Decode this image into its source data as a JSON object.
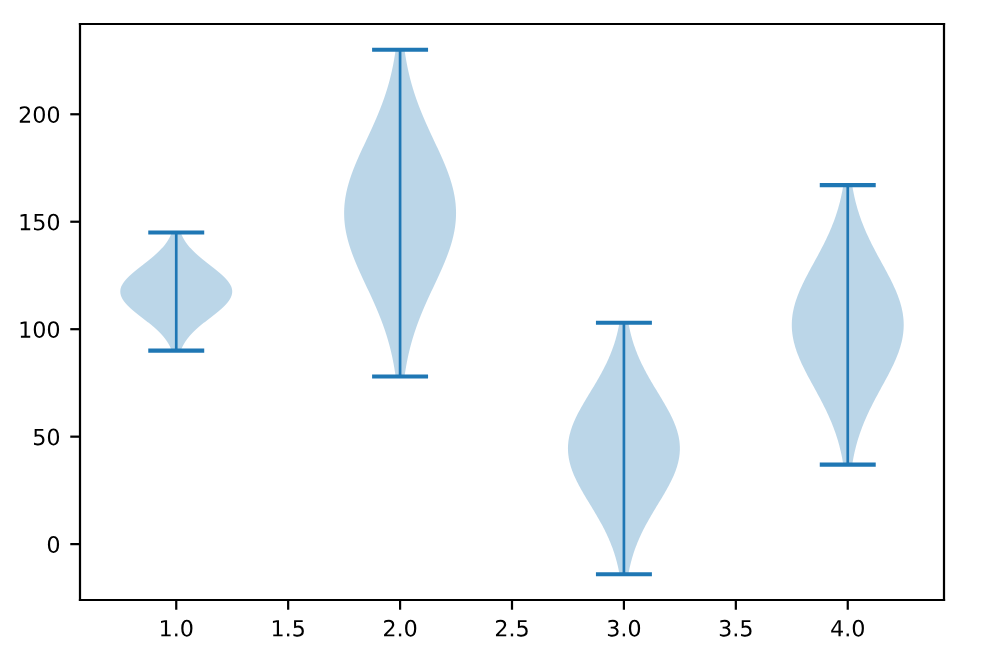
{
  "chart_data": {
    "type": "bar",
    "x": [
      1,
      2,
      3,
      4
    ],
    "series": [
      {
        "color": "#1f77b4",
        "base": [
          90,
          78,
          -14,
          37
        ],
        "values": [
          55,
          152,
          117,
          130
        ]
      }
    ],
    "xlim": [
      0.57,
      4.43
    ],
    "ylim": [
      -26,
      242
    ],
    "xticks": [
      {
        "value": 1,
        "label": "1.0"
      },
      {
        "value": 1.5,
        "label": "1.5"
      },
      {
        "value": 2,
        "label": "2.0"
      },
      {
        "value": 2.5,
        "label": "2.5"
      },
      {
        "value": 3,
        "label": "3.0"
      },
      {
        "value": 3.5,
        "label": "3.5"
      },
      {
        "value": 4,
        "label": "4.0"
      }
    ],
    "yticks": [
      0,
      50,
      100,
      150,
      200
    ],
    "grid": false
  }
}
